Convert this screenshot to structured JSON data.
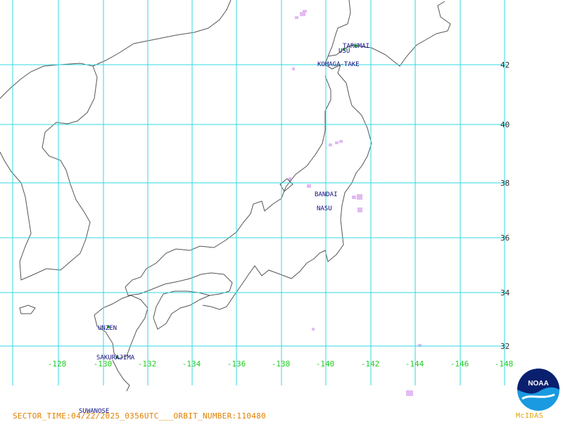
{
  "map": {
    "lat_labels": [
      "42",
      "40",
      "38",
      "36",
      "34",
      "32"
    ],
    "lon_labels": [
      "-128",
      "-130",
      "-132",
      "-134",
      "-136",
      "-138",
      "-140",
      "-142",
      "-144",
      "-146",
      "-148"
    ],
    "volcanoes": [
      {
        "name": "TARUMAI",
        "marker": true
      },
      {
        "name": "USU",
        "marker": true
      },
      {
        "name": "KOMAGA-TAKE",
        "marker": false
      },
      {
        "name": "BANDAI",
        "marker": false
      },
      {
        "name": "NASU",
        "marker": false
      },
      {
        "name": "UNZEN",
        "marker": true
      },
      {
        "name": "SAKURAJIMA",
        "marker": true
      },
      {
        "name": "SUWANOSE",
        "marker": false
      }
    ],
    "colors": {
      "grid": "#30d8e0",
      "coast": "#555555",
      "lon_label": "#22cc22",
      "lat_label": "#2f2f2f",
      "volcano_label": "#101080",
      "volcano_marker": "#20c020",
      "anomaly": "#dcaaf0",
      "footer": "#e08000"
    }
  },
  "footer": {
    "text": "SECTOR_TIME:04/22/2025_0356UTC___ORBIT_NUMBER:110480"
  },
  "logo": {
    "noaa_text": "NOAA",
    "mcidas_text": "McIDAS",
    "icon": "noaa-emblem-icon"
  }
}
